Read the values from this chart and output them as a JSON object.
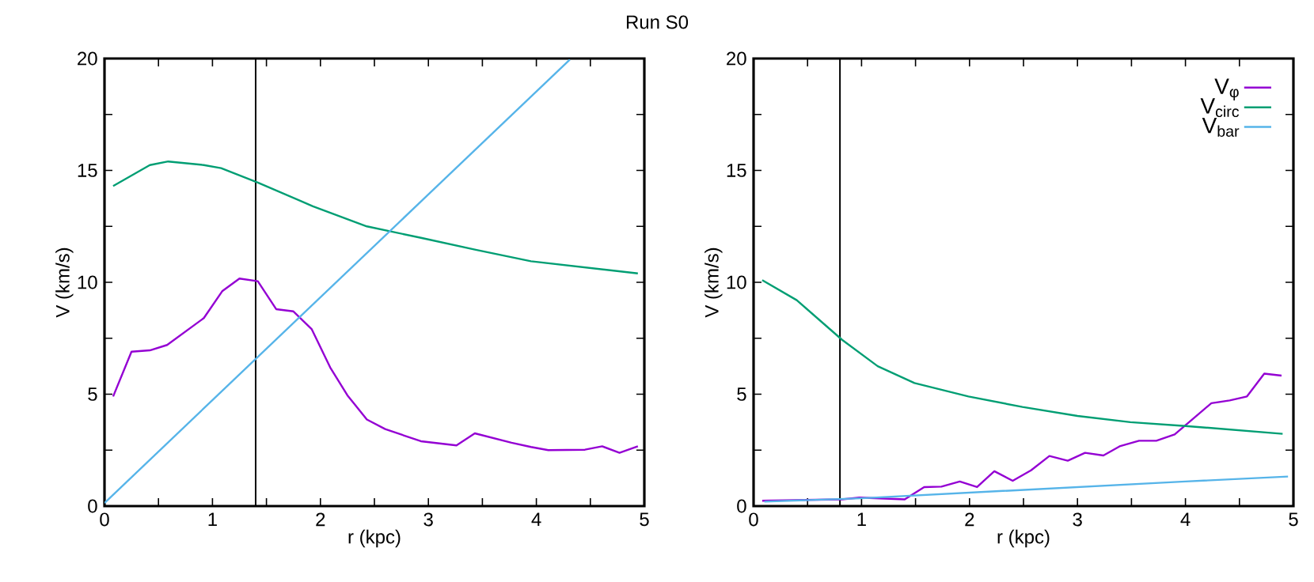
{
  "chart_data": [
    {
      "type": "line",
      "title": "Run S0",
      "xlabel": "r (kpc)",
      "ylabel": "V (km/s)",
      "xlim": [
        0,
        5
      ],
      "ylim": [
        0,
        20
      ],
      "xticks": [
        0,
        {
          "value": 0.5,
          "label": null
        },
        1,
        {
          "value": 1.5,
          "label": null
        },
        2,
        {
          "value": 2.5,
          "label": null
        },
        3,
        {
          "value": 3.5,
          "label": null
        },
        4,
        {
          "value": 4.5,
          "label": null
        },
        5
      ],
      "yticks": [
        0,
        {
          "value": 2.5,
          "label": null
        },
        5,
        {
          "value": 7.5,
          "label": null
        },
        10,
        {
          "value": 12.5,
          "label": null
        },
        15,
        {
          "value": 17.5,
          "label": null
        },
        20
      ],
      "ref_lines": [
        {
          "axis": "x",
          "value": 1.4,
          "color": "#000000"
        }
      ],
      "series": [
        {
          "color": "#9400d3",
          "x": [
            0.08,
            0.25,
            0.42,
            0.58,
            0.92,
            1.09,
            1.25,
            1.42,
            1.59,
            1.75,
            1.92,
            2.09,
            2.25,
            2.43,
            2.6,
            2.93,
            3.26,
            3.43,
            3.77,
            3.95,
            4.11,
            4.45,
            4.61,
            4.77,
            4.94
          ],
          "values": [
            4.9,
            6.9,
            6.96,
            7.2,
            8.4,
            9.6,
            10.17,
            10.05,
            8.8,
            8.7,
            7.9,
            6.2,
            4.95,
            3.87,
            3.44,
            2.9,
            2.71,
            3.25,
            2.83,
            2.64,
            2.5,
            2.52,
            2.67,
            2.38,
            2.67
          ]
        },
        {
          "color": "#009e73",
          "x": [
            0.08,
            0.42,
            0.59,
            0.92,
            1.08,
            1.42,
            1.93,
            2.43,
            2.94,
            3.43,
            3.95,
            4.94
          ],
          "values": [
            14.3,
            15.24,
            15.4,
            15.24,
            15.1,
            14.46,
            13.4,
            12.5,
            11.98,
            11.46,
            10.94,
            10.4
          ]
        },
        {
          "color": "#56b4e9",
          "x": [
            0.0,
            4.31
          ],
          "values": [
            0.14,
            19.95
          ]
        }
      ]
    },
    {
      "type": "line",
      "xlabel": "r (kpc)",
      "ylabel": "V (km/s)",
      "xlim": [
        0,
        5
      ],
      "ylim": [
        0,
        20
      ],
      "legend": "top right",
      "xticks": [
        0,
        {
          "value": 0.5,
          "label": null
        },
        1,
        {
          "value": 1.5,
          "label": null
        },
        2,
        {
          "value": 2.5,
          "label": null
        },
        3,
        {
          "value": 3.5,
          "label": null
        },
        4,
        {
          "value": 4.5,
          "label": null
        },
        5
      ],
      "yticks": [
        0,
        {
          "value": 2.5,
          "label": null
        },
        5,
        {
          "value": 7.5,
          "label": null
        },
        10,
        {
          "value": 12.5,
          "label": null
        },
        15,
        {
          "value": 17.5,
          "label": null
        },
        20
      ],
      "ref_lines": [
        {
          "axis": "x",
          "value": 0.8,
          "color": "#000000"
        }
      ],
      "series": [
        {
          "name": "V$_{φ}$",
          "color": "#9400d3",
          "x": [
            0.08,
            0.82,
            0.98,
            1.4,
            1.58,
            1.74,
            1.91,
            2.07,
            2.23,
            2.4,
            2.57,
            2.74,
            2.91,
            3.07,
            3.24,
            3.39,
            3.57,
            3.73,
            3.9,
            4.07,
            4.24,
            4.41,
            4.57,
            4.73,
            4.89
          ],
          "values": [
            0.24,
            0.3,
            0.38,
            0.3,
            0.85,
            0.87,
            1.1,
            0.85,
            1.56,
            1.13,
            1.6,
            2.24,
            2.03,
            2.38,
            2.26,
            2.67,
            2.92,
            2.92,
            3.2,
            3.9,
            4.6,
            4.72,
            4.9,
            5.92,
            5.83
          ]
        },
        {
          "name": "V$_{circ}$",
          "color": "#009e73",
          "x": [
            0.08,
            0.4,
            0.82,
            1.15,
            1.49,
            1.99,
            2.49,
            3.0,
            3.49,
            4.0,
            4.9
          ],
          "values": [
            10.1,
            9.2,
            7.43,
            6.25,
            5.5,
            4.9,
            4.43,
            4.03,
            3.75,
            3.58,
            3.23
          ]
        },
        {
          "name": "V$_{bar}$",
          "color": "#56b4e9",
          "x": [
            0.1,
            1.0,
            2.0,
            3.0,
            4.0,
            4.95
          ],
          "values": [
            0.2,
            0.35,
            0.6,
            0.85,
            1.1,
            1.32
          ]
        }
      ]
    }
  ]
}
